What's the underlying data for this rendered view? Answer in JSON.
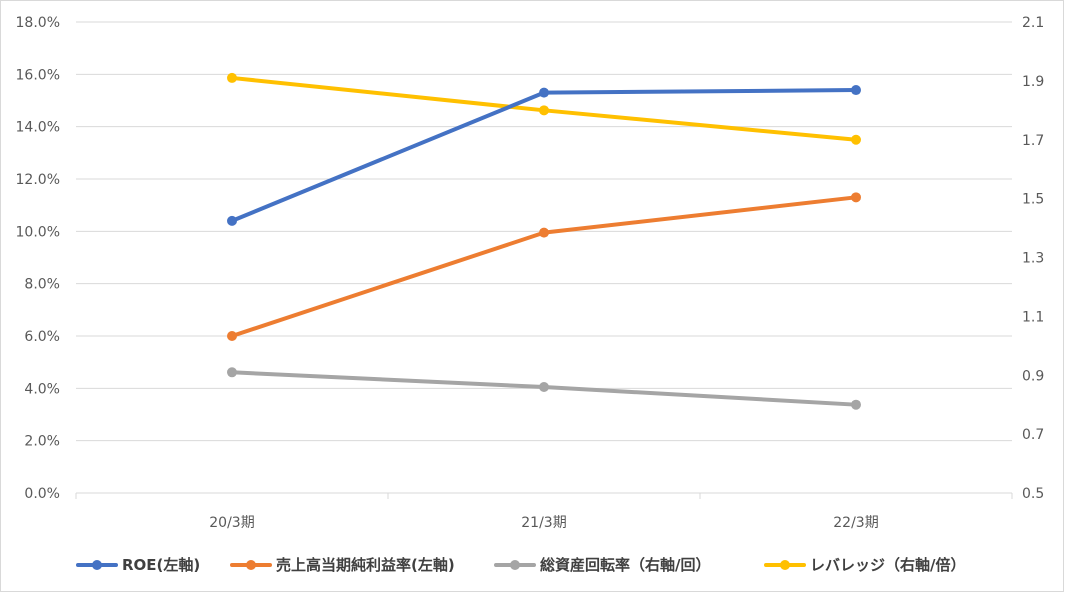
{
  "chart_data": {
    "type": "line",
    "categories": [
      "20/3期",
      "21/3期",
      "22/3期"
    ],
    "left_axis": {
      "min": 0,
      "max": 0.18,
      "step": 0.02,
      "tick_labels": [
        "0.0%",
        "2.0%",
        "4.0%",
        "6.0%",
        "8.0%",
        "10.0%",
        "12.0%",
        "14.0%",
        "16.0%",
        "18.0%"
      ]
    },
    "right_axis": {
      "min": 0.5,
      "max": 2.1,
      "step": 0.2,
      "tick_labels": [
        "0.5",
        "0.7",
        "0.9",
        "1.1",
        "1.3",
        "1.5",
        "1.7",
        "1.9",
        "2.1"
      ]
    },
    "grid": true,
    "legend_position": "bottom",
    "series": [
      {
        "name": "ROE(左軸)",
        "axis": "left",
        "color": "#4472c4",
        "values": [
          0.104,
          0.153,
          0.154
        ]
      },
      {
        "name": "売上高当期純利益率(左軸)",
        "axis": "left",
        "color": "#ed7d31",
        "values": [
          0.06,
          0.0995,
          0.113
        ]
      },
      {
        "name": "総資産回転率（右軸/回）",
        "axis": "right",
        "color": "#a5a5a5",
        "values": [
          0.91,
          0.86,
          0.8
        ]
      },
      {
        "name": "レバレッジ（右軸/倍）",
        "axis": "right",
        "color": "#ffc000",
        "values": [
          1.91,
          1.8,
          1.7
        ]
      }
    ]
  }
}
